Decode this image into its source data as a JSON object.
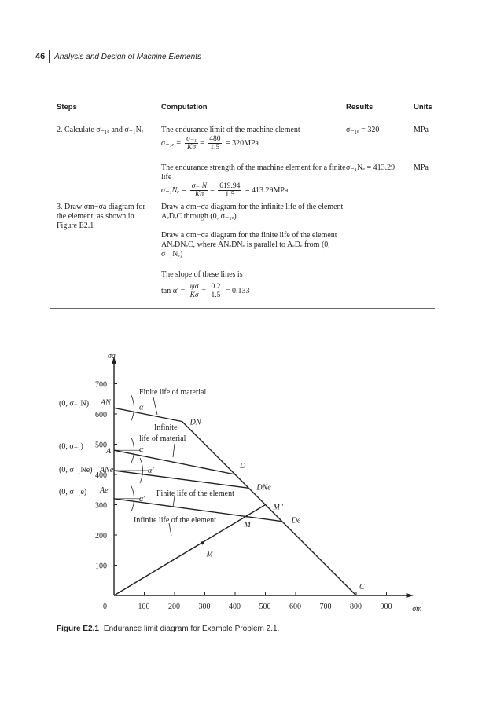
{
  "header": {
    "page_number": "46",
    "running_title": "Analysis and Design of Machine Elements"
  },
  "table": {
    "headers": [
      "Steps",
      "Computation",
      "Results",
      "Units"
    ],
    "rows": [
      {
        "step": "2. Calculate σ₋₁ₑ and σ₋₁Nₑ",
        "blocks": [
          {
            "text": "The endurance limit of the machine element",
            "formula_lhs": "σ₋₁ₑ =",
            "f1_num": "σ₋₁",
            "f1_den": "Kσ",
            "f2_num": "480",
            "f2_den": "1.5",
            "formula_rhs": "= 320MPa",
            "result": "σ₋₁ₑ = 320",
            "unit": "MPa"
          },
          {
            "text": "The endurance strength of the machine element for a finite life",
            "formula_lhs": "σ₋₁Nₑ =",
            "f1_num": "σ₋₁N",
            "f1_den": "Kσ",
            "f2_num": "619.94",
            "f2_den": "1.5",
            "formula_rhs": "= 413.29MPa",
            "result": "σ₋₁Nₑ = 413.29",
            "unit": "MPa"
          }
        ]
      },
      {
        "step": "3. Draw σm−σa diagram for the element, as shown in Figure E2.1",
        "blocks": [
          {
            "text": "Draw a σm−σa diagram for the infinite life of the element AₑDₑC through (0, σ₋₁ₑ)."
          },
          {
            "text": "Draw a σm−σa diagram for the finite life of the element ANₑDNₑC, where ANₑDNₑ is parallel to AₑDₑ from (0, σ₋₁Nₑ)"
          },
          {
            "text": "The slope of these lines is",
            "formula_lhs": "tan α′ =",
            "f1_num": "ψσ",
            "f1_den": "Kσ",
            "f2_num": "0.2",
            "f2_den": "1.5",
            "formula_rhs": "= 0.133"
          }
        ]
      }
    ]
  },
  "figure": {
    "caption_label": "Figure E2.1",
    "caption_text": "Endurance limit diagram for Example Problem 2.1.",
    "y_axis_label": "σa",
    "x_axis_label": "σm",
    "x_ticks": [
      "0",
      "100",
      "200",
      "300",
      "400",
      "500",
      "600",
      "700",
      "800",
      "900"
    ],
    "y_ticks": [
      "100",
      "200",
      "300",
      "400",
      "500",
      "600",
      "700"
    ],
    "points": {
      "AN": {
        "label": "AN",
        "coord_label": "(0, σ₋₁N)",
        "x": 0,
        "y": 620
      },
      "DN": {
        "label": "DN",
        "x": 225,
        "y": 575
      },
      "A": {
        "label": "A",
        "coord_label": "(0, σ₋₁)",
        "x": 0,
        "y": 480
      },
      "D": {
        "label": "D",
        "x": 400,
        "y": 400
      },
      "ANe": {
        "label": "ANe",
        "coord_label": "(0, σ₋₁Ne)",
        "x": 0,
        "y": 413
      },
      "DNe": {
        "label": "DNe",
        "x": 445,
        "y": 355
      },
      "Ae": {
        "label": "Ae",
        "coord_label": "(0, σ₋₁e)",
        "x": 0,
        "y": 320
      },
      "De": {
        "label": "De",
        "x": 555,
        "y": 245
      },
      "C": {
        "label": "C",
        "x": 800,
        "y": 0
      },
      "M2": {
        "label": "M″",
        "x": 500,
        "y": 300
      },
      "M1": {
        "label": "M′",
        "x": 440,
        "y": 262
      },
      "M": {
        "label": "M",
        "x": 300,
        "y": 180
      }
    },
    "annotations": {
      "finite_material": "Finite life of material",
      "infinite_material_1": "Infinite",
      "infinite_material_2": "life of material",
      "finite_element": "Finite life of the element",
      "infinite_element": "Infinite life of the element",
      "alpha": "α",
      "alpha_prime": "α′"
    }
  }
}
